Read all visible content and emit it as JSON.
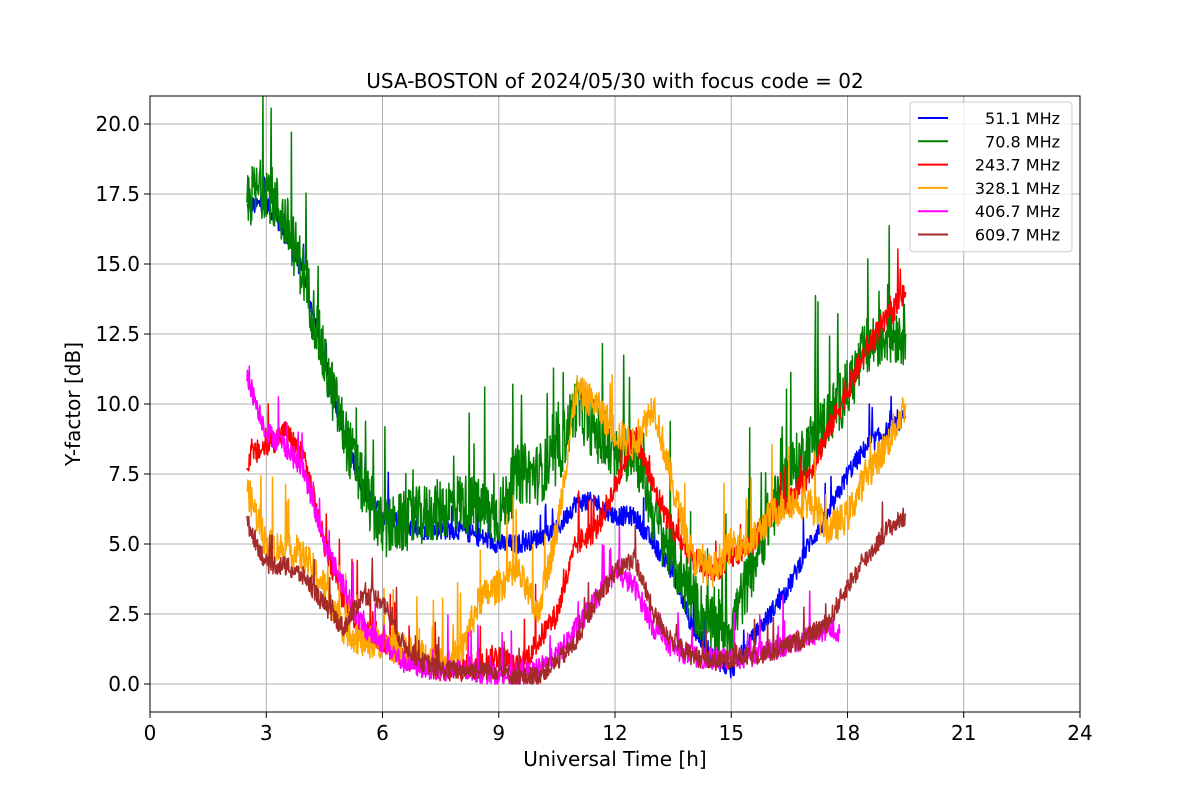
{
  "chart_data": {
    "type": "line",
    "title": "USA-BOSTON of 2024/05/30 with focus code = 02",
    "xlabel": "Universal Time [h]",
    "ylabel": "Y-factor [dB]",
    "xlim": [
      0,
      24
    ],
    "ylim": [
      -1.0,
      21.0
    ],
    "xticks": [
      0,
      3,
      6,
      9,
      12,
      15,
      18,
      21,
      24
    ],
    "yticks": [
      0.0,
      2.5,
      5.0,
      7.5,
      10.0,
      12.5,
      15.0,
      17.5,
      20.0
    ],
    "xtick_labels": [
      "0",
      "3",
      "6",
      "9",
      "12",
      "15",
      "18",
      "21",
      "24"
    ],
    "ytick_labels": [
      "0.0",
      "2.5",
      "5.0",
      "7.5",
      "10.0",
      "12.5",
      "15.0",
      "17.5",
      "20.0"
    ],
    "grid": true,
    "legend_position": "top-right",
    "series": [
      {
        "name": "51.1 MHz",
        "color": "#0000ff",
        "noise": 0.35,
        "x": [
          2.5,
          3.0,
          3.5,
          4.0,
          4.5,
          5.0,
          5.5,
          6.0,
          7.0,
          8.0,
          9.0,
          9.5,
          10.0,
          10.5,
          11.0,
          11.5,
          12.0,
          12.5,
          13.0,
          13.5,
          14.0,
          14.5,
          15.0,
          15.5,
          16.0,
          16.5,
          17.0,
          17.5,
          18.0,
          18.5,
          19.0,
          19.5
        ],
        "y": [
          17.0,
          17.2,
          16.0,
          14.5,
          11.5,
          9.0,
          7.0,
          6.0,
          5.5,
          5.5,
          5.0,
          5.0,
          5.2,
          5.5,
          6.5,
          6.5,
          6.0,
          6.0,
          5.0,
          4.0,
          2.0,
          1.0,
          0.5,
          1.5,
          2.5,
          3.5,
          5.0,
          6.0,
          7.5,
          8.5,
          9.0,
          9.5
        ]
      },
      {
        "name": "70.8 MHz",
        "color": "#008000",
        "noise": 1.1,
        "x": [
          2.5,
          3.0,
          3.5,
          4.0,
          4.5,
          5.0,
          5.5,
          6.0,
          7.0,
          8.0,
          9.0,
          9.5,
          10.0,
          10.5,
          11.0,
          11.5,
          12.0,
          12.5,
          13.0,
          13.5,
          14.0,
          14.5,
          15.0,
          15.5,
          16.0,
          16.5,
          17.0,
          17.5,
          18.0,
          18.5,
          19.0,
          19.5
        ],
        "y": [
          17.3,
          17.8,
          16.5,
          14.5,
          11.5,
          9.0,
          7.0,
          5.5,
          6.0,
          6.5,
          6.0,
          7.5,
          7.5,
          8.0,
          10.0,
          9.0,
          8.0,
          8.5,
          6.0,
          4.5,
          3.0,
          2.0,
          2.0,
          4.0,
          6.0,
          7.5,
          8.5,
          9.5,
          10.5,
          12.0,
          12.5,
          12.5
        ]
      },
      {
        "name": "243.7 MHz",
        "color": "#ff0000",
        "noise": 0.45,
        "x": [
          2.5,
          3.0,
          3.5,
          4.0,
          4.5,
          5.0,
          5.5,
          6.0,
          6.5,
          7.0,
          7.5,
          8.0,
          8.5,
          9.0,
          9.5,
          10.0,
          10.5,
          11.0,
          11.5,
          12.0,
          12.5,
          13.0,
          13.5,
          14.0,
          14.5,
          15.0,
          15.5,
          16.0,
          16.5,
          17.0,
          17.5,
          18.0,
          18.5,
          19.0,
          19.5
        ],
        "y": [
          8.0,
          8.5,
          9.0,
          8.0,
          5.0,
          3.0,
          2.0,
          1.5,
          1.0,
          0.8,
          0.5,
          0.5,
          0.8,
          1.0,
          0.5,
          1.5,
          2.5,
          5.0,
          5.5,
          7.0,
          9.0,
          7.0,
          5.5,
          4.5,
          4.0,
          4.5,
          5.0,
          6.0,
          6.5,
          7.5,
          9.0,
          10.5,
          12.0,
          13.0,
          14.0
        ]
      },
      {
        "name": "328.1 MHz",
        "color": "#ffa500",
        "noise": 0.6,
        "x": [
          2.5,
          3.0,
          3.5,
          4.0,
          4.5,
          5.0,
          5.5,
          6.0,
          6.5,
          7.0,
          7.5,
          8.0,
          8.5,
          9.0,
          9.5,
          10.0,
          10.5,
          11.0,
          11.5,
          12.0,
          12.5,
          13.0,
          13.5,
          14.0,
          14.5,
          15.0,
          15.5,
          16.0,
          16.5,
          17.0,
          17.5,
          18.0,
          18.5,
          19.0,
          19.5
        ],
        "y": [
          7.0,
          5.0,
          4.8,
          4.5,
          3.5,
          2.0,
          1.5,
          1.5,
          1.2,
          1.0,
          0.8,
          1.0,
          3.0,
          3.5,
          4.0,
          2.5,
          5.5,
          10.5,
          10.0,
          9.0,
          8.5,
          10.0,
          7.0,
          4.5,
          4.0,
          5.0,
          5.0,
          6.0,
          6.5,
          6.5,
          5.5,
          6.0,
          7.5,
          8.5,
          10.0
        ]
      },
      {
        "name": "406.7 MHz",
        "color": "#ff00ff",
        "noise": 0.4,
        "x": [
          2.5,
          3.0,
          3.5,
          4.0,
          4.5,
          5.0,
          5.5,
          6.0,
          6.5,
          7.0,
          7.5,
          8.0,
          8.5,
          9.0,
          9.5,
          10.0,
          10.5,
          11.0,
          11.5,
          12.0,
          12.5,
          13.0,
          13.5,
          14.0,
          14.5,
          15.0,
          15.5,
          16.0,
          16.5,
          17.0,
          17.5,
          17.8
        ],
        "y": [
          11.0,
          9.0,
          8.5,
          7.5,
          5.0,
          3.5,
          2.0,
          1.5,
          0.8,
          0.6,
          0.5,
          0.5,
          0.4,
          0.3,
          0.3,
          0.5,
          1.0,
          2.0,
          3.0,
          4.0,
          3.5,
          2.0,
          1.3,
          1.0,
          0.9,
          0.9,
          1.0,
          1.2,
          1.4,
          1.7,
          2.0,
          1.8
        ]
      },
      {
        "name": "609.7 MHz",
        "color": "#a52a2a",
        "noise": 0.35,
        "x": [
          2.5,
          3.0,
          3.5,
          4.0,
          4.5,
          5.0,
          5.5,
          6.0,
          6.5,
          7.0,
          7.5,
          8.0,
          8.5,
          9.0,
          9.5,
          10.0,
          10.5,
          11.0,
          11.5,
          12.0,
          12.5,
          13.0,
          13.5,
          14.0,
          14.5,
          15.0,
          15.5,
          16.0,
          16.5,
          17.0,
          17.5,
          18.0,
          18.5,
          19.0,
          19.5
        ],
        "y": [
          5.8,
          4.3,
          4.2,
          3.8,
          2.8,
          2.0,
          3.2,
          3.0,
          1.5,
          0.8,
          0.5,
          0.5,
          0.5,
          0.5,
          0.2,
          0.3,
          0.8,
          1.5,
          3.0,
          4.0,
          4.5,
          2.5,
          1.5,
          1.0,
          0.8,
          0.9,
          1.0,
          1.1,
          1.4,
          1.7,
          2.2,
          3.5,
          4.5,
          5.5,
          6.0
        ]
      }
    ]
  }
}
